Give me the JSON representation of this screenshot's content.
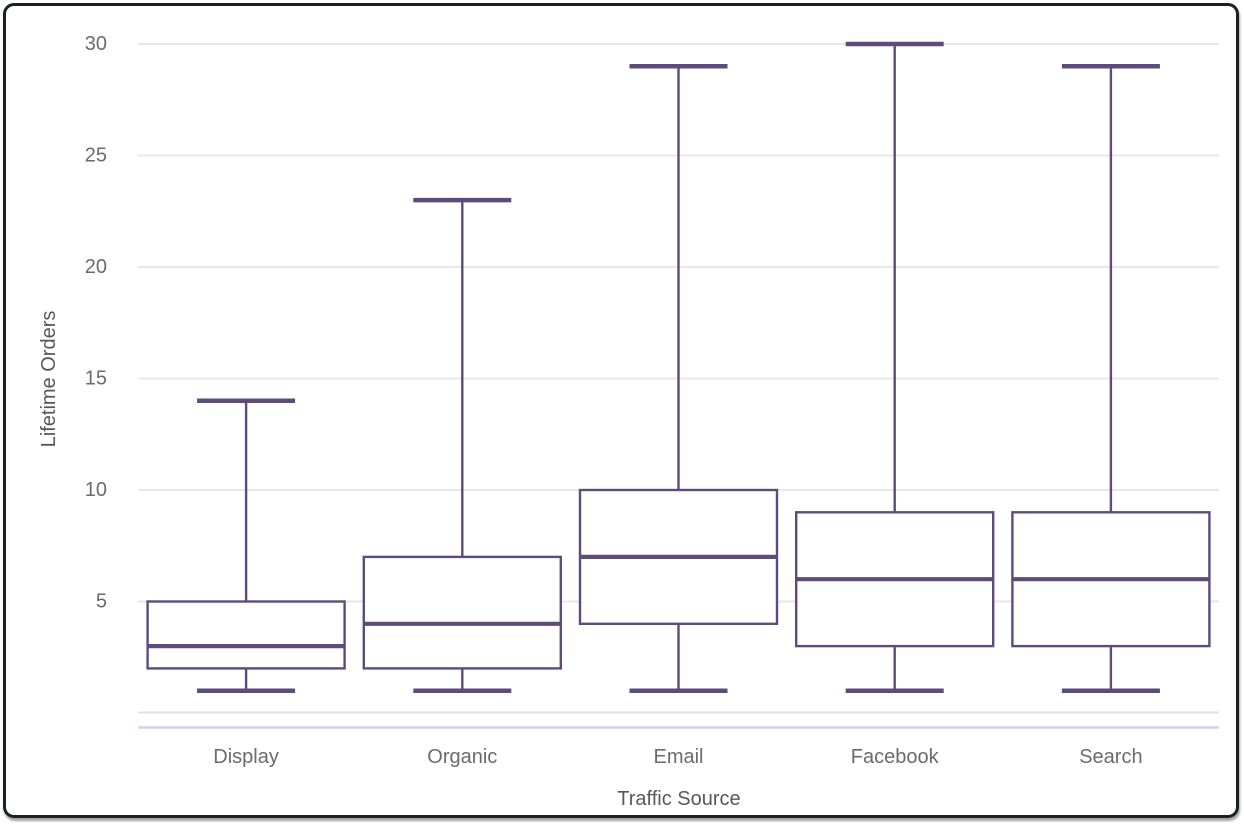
{
  "chart_data": {
    "type": "boxplot",
    "title": "",
    "xlabel": "Traffic Source",
    "ylabel": "Lifetime Orders",
    "categories": [
      "Display",
      "Organic",
      "Email",
      "Facebook",
      "Search"
    ],
    "series": [
      {
        "name": "Display",
        "min": 1,
        "q1": 2,
        "median": 3,
        "q3": 5,
        "max": 14
      },
      {
        "name": "Organic",
        "min": 1,
        "q1": 2,
        "median": 4,
        "q3": 7,
        "max": 23
      },
      {
        "name": "Email",
        "min": 1,
        "q1": 4,
        "median": 7,
        "q3": 10,
        "max": 29
      },
      {
        "name": "Facebook",
        "min": 1,
        "q1": 3,
        "median": 6,
        "q3": 9,
        "max": 30
      },
      {
        "name": "Search",
        "min": 1,
        "q1": 3,
        "median": 6,
        "q3": 9,
        "max": 29
      }
    ],
    "ylim": [
      0,
      30
    ],
    "yticks": [
      5,
      10,
      15,
      20,
      25,
      30
    ],
    "grid": "horizontal",
    "legend": "none"
  },
  "colors": {
    "box_stroke": "#5c4b7c",
    "box_fill": "#ffffff",
    "gridline": "#e7e7e7",
    "axis_line": "#e0e0e0",
    "baseline_accent": "#ccd7ec",
    "tick_text": "#6b6b6b",
    "axis_title_text": "#585858",
    "frame_border": "#1d2021"
  }
}
